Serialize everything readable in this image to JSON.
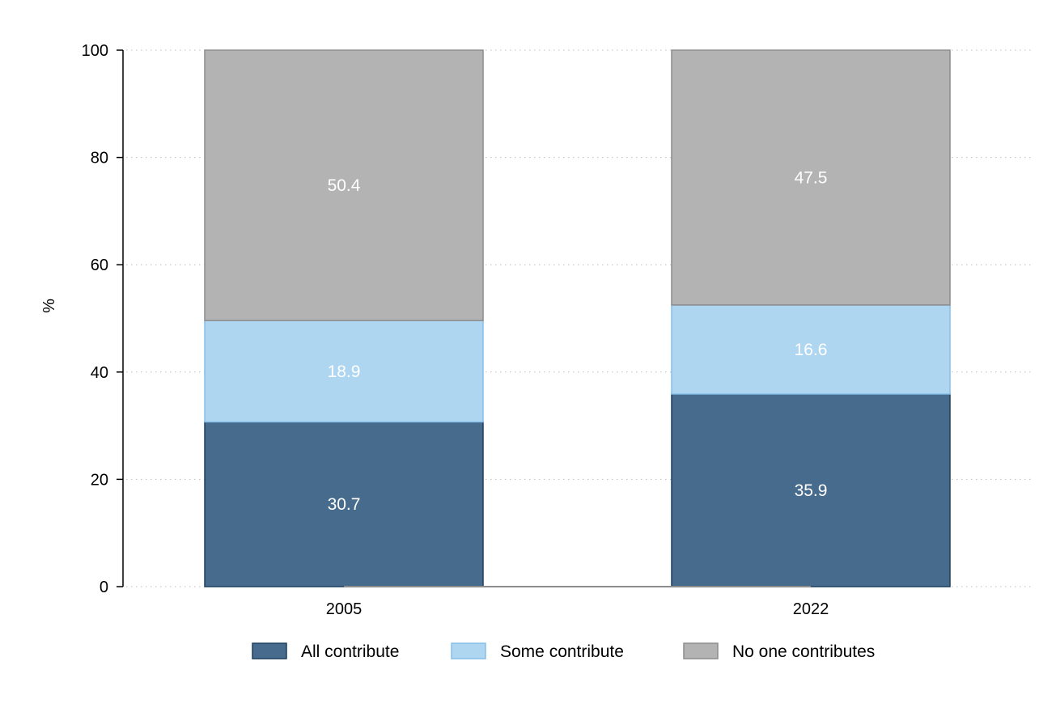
{
  "chart_data": {
    "type": "bar",
    "stacked": true,
    "title": "",
    "xlabel": "",
    "ylabel": "%",
    "ylim": [
      0,
      100
    ],
    "yticks": [
      0,
      20,
      40,
      60,
      80,
      100
    ],
    "grid": true,
    "legend_position": "bottom",
    "categories": [
      "2005",
      "2022"
    ],
    "series": [
      {
        "name": "All contribute",
        "values": [
          30.7,
          35.9
        ],
        "labels": [
          "30.7",
          "35.9"
        ],
        "color": "#476b8c",
        "stroke": "#1f3f5f"
      },
      {
        "name": "Some contribute",
        "values": [
          18.9,
          16.6
        ],
        "labels": [
          "18.9",
          "16.6"
        ],
        "color": "#afd6f1",
        "stroke": "#86bfe8"
      },
      {
        "name": "No one contributes",
        "values": [
          50.4,
          47.5
        ],
        "labels": [
          "50.4",
          "47.5"
        ],
        "color": "#b3b3b3",
        "stroke": "#8c8c8c"
      }
    ]
  }
}
